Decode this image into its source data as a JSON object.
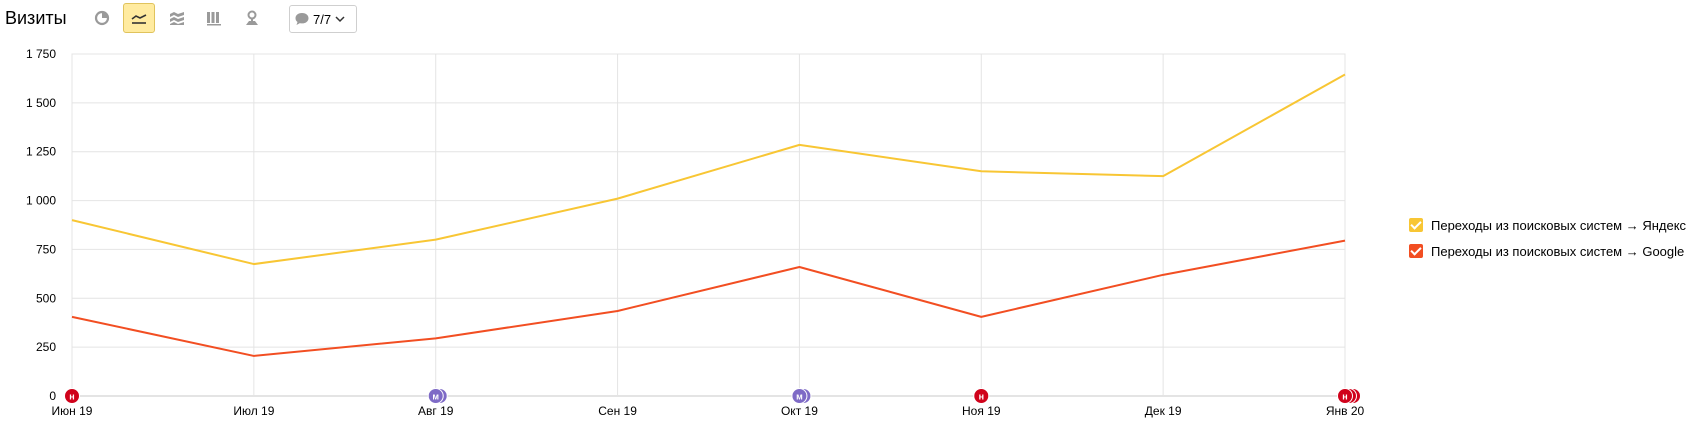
{
  "header": {
    "title": "Визиты",
    "notes_count": "7/7"
  },
  "toolbar_icons": [
    "pie-chart-icon",
    "line-chart-icon",
    "area-chart-icon",
    "bar-chart-icon",
    "map-icon"
  ],
  "colors": {
    "yandex": "#f8c634",
    "google": "#f24e22",
    "note_red": "#d0021b",
    "note_purple": "#7e6ac6",
    "active_button": "#ffeba0"
  },
  "chart_data": {
    "type": "line",
    "title": "",
    "xlabel": "",
    "ylabel": "",
    "categories": [
      "Июн 19",
      "Июл 19",
      "Авг 19",
      "Сен 19",
      "Окт 19",
      "Ноя 19",
      "Дек 19",
      "Янв 20"
    ],
    "yticks": [
      0,
      250,
      500,
      750,
      1000,
      1250,
      1500,
      1750
    ],
    "ytick_labels": [
      "0",
      "250",
      "500",
      "750",
      "1 000",
      "1 250",
      "1 500",
      "1 750"
    ],
    "ylim": [
      0,
      1750
    ],
    "grid": true,
    "legend_position": "right",
    "series": [
      {
        "name": "Переходы из поисковых систем → Яндекс",
        "color": "#f8c634",
        "values": [
          900,
          675,
          800,
          1010,
          1285,
          1150,
          1125,
          1645
        ]
      },
      {
        "name": "Переходы из поисковых систем → Google",
        "color": "#f24e22",
        "values": [
          405,
          205,
          295,
          435,
          660,
          405,
          620,
          795
        ]
      }
    ],
    "annotations": [
      {
        "category": "Июн 19",
        "label": "н",
        "color": "#d0021b",
        "count": 1
      },
      {
        "category": "Авг 19",
        "label": "м",
        "color": "#7e6ac6",
        "count": 2
      },
      {
        "category": "Окт 19",
        "label": "м",
        "color": "#7e6ac6",
        "count": 2
      },
      {
        "category": "Ноя 19",
        "label": "н",
        "color": "#d0021b",
        "count": 1
      },
      {
        "category": "Янв 20",
        "label": "н",
        "color": "#d0021b",
        "count": 3
      }
    ]
  }
}
